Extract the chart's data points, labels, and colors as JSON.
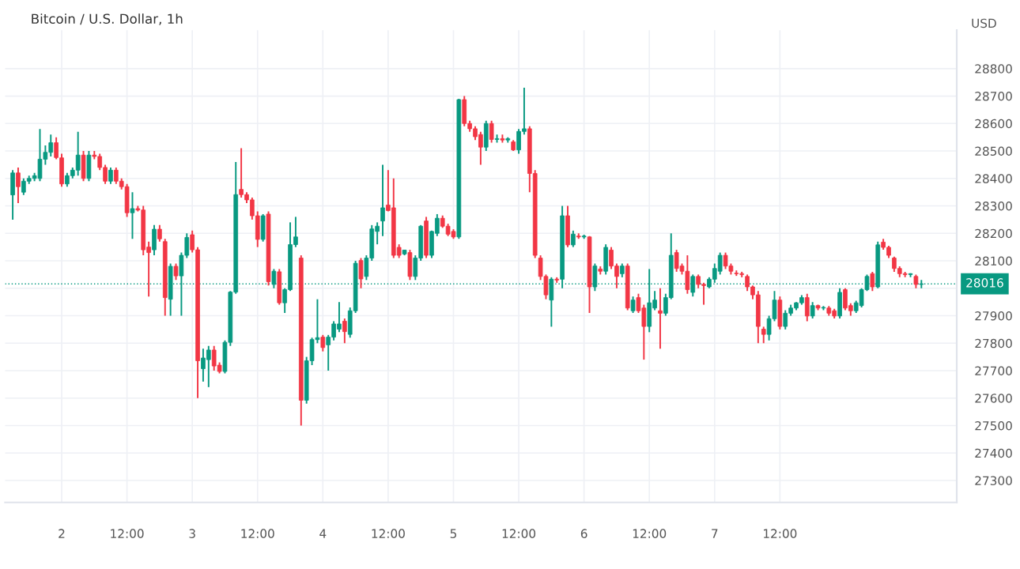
{
  "chart_data": {
    "type": "candlestick",
    "title": "Bitcoin / U.S. Dollar, 1h",
    "categories": [
      null,
      null,
      null,
      null,
      null,
      null,
      null,
      null,
      null,
      "2",
      null,
      null,
      null,
      null,
      null,
      null,
      null,
      null,
      null,
      null,
      null,
      "12:00",
      null,
      null,
      null,
      null,
      null,
      null,
      null,
      null,
      null,
      null,
      null,
      "3",
      null,
      null,
      null,
      null,
      null,
      null,
      null,
      null,
      null,
      null,
      null,
      "12:00",
      null,
      null,
      null,
      null,
      null,
      null,
      null,
      null,
      null,
      null,
      null,
      "4",
      null,
      null,
      null,
      null,
      null,
      null,
      null,
      null,
      null,
      null,
      null,
      "12:00",
      null,
      null,
      null,
      null,
      null,
      null,
      null,
      null,
      null,
      null,
      null,
      "5",
      null,
      null,
      null,
      null,
      null,
      null,
      null,
      null,
      null,
      null,
      null,
      "12:00",
      null,
      null,
      null,
      null,
      null,
      null,
      null,
      null,
      null,
      null,
      null,
      "6",
      null,
      null,
      null,
      null,
      null,
      null,
      null,
      null,
      null,
      null,
      null,
      "12:00",
      null,
      null,
      null,
      null,
      null,
      null,
      null,
      null,
      null,
      null,
      null,
      "7",
      null,
      null,
      null,
      null,
      null,
      null,
      null,
      null,
      null,
      null,
      null,
      "12:00",
      null,
      null,
      null,
      null,
      null,
      null,
      null,
      null,
      null,
      null,
      null,
      null,
      null,
      null,
      null,
      null,
      null,
      null,
      null,
      null,
      null,
      null,
      null,
      null,
      null,
      null
    ],
    "ohlc": [
      [
        28340,
        28430,
        28250,
        28420
      ],
      [
        28420,
        28440,
        28310,
        28370
      ],
      [
        28350,
        28400,
        28340,
        28390
      ],
      [
        28390,
        28410,
        28380,
        28400
      ],
      [
        28400,
        28420,
        28390,
        28410
      ],
      [
        28400,
        28580,
        28390,
        28470
      ],
      [
        28470,
        28520,
        28450,
        28495
      ],
      [
        28495,
        28560,
        28480,
        28530
      ],
      [
        28530,
        28550,
        28470,
        28476
      ],
      [
        28475,
        28490,
        28370,
        28380
      ],
      [
        28380,
        28420,
        28370,
        28410
      ],
      [
        28410,
        28440,
        28400,
        28430
      ],
      [
        28430,
        28570,
        28410,
        28485
      ],
      [
        28485,
        28500,
        28390,
        28400
      ],
      [
        28400,
        28500,
        28390,
        28485
      ],
      [
        28485,
        28500,
        28470,
        28480
      ],
      [
        28480,
        28490,
        28430,
        28440
      ],
      [
        28440,
        28450,
        28380,
        28390
      ],
      [
        28390,
        28440,
        28380,
        28430
      ],
      [
        28430,
        28440,
        28380,
        28390
      ],
      [
        28390,
        28400,
        28360,
        28370
      ],
      [
        28370,
        28380,
        28260,
        28275
      ],
      [
        28275,
        28350,
        28180,
        28290
      ],
      [
        28290,
        28300,
        28280,
        28285
      ],
      [
        28285,
        28300,
        28120,
        28140
      ],
      [
        28150,
        28170,
        27970,
        28130
      ],
      [
        28140,
        28230,
        28120,
        28215
      ],
      [
        28215,
        28230,
        28170,
        28180
      ],
      [
        28170,
        28180,
        27900,
        27966
      ],
      [
        27960,
        28090,
        27900,
        28080
      ],
      [
        28080,
        28090,
        28030,
        28045
      ],
      [
        28045,
        28130,
        27900,
        28120
      ],
      [
        28120,
        28200,
        28110,
        28185
      ],
      [
        28195,
        28210,
        28130,
        28140
      ],
      [
        28140,
        28150,
        27600,
        27736
      ],
      [
        27707,
        27780,
        27660,
        27746
      ],
      [
        27740,
        27790,
        27640,
        27775
      ],
      [
        27775,
        27790,
        27700,
        27717
      ],
      [
        27720,
        27730,
        27690,
        27697
      ],
      [
        27697,
        27810,
        27690,
        27803
      ],
      [
        27803,
        27990,
        27790,
        27986
      ],
      [
        27986,
        28460,
        27980,
        28341
      ],
      [
        28360,
        28510,
        28330,
        28341
      ],
      [
        28341,
        28350,
        28310,
        28322
      ],
      [
        28322,
        28330,
        28250,
        28264
      ],
      [
        28264,
        28280,
        28150,
        28178
      ],
      [
        28178,
        28270,
        28170,
        28264
      ],
      [
        28270,
        28280,
        28010,
        28024
      ],
      [
        28014,
        28070,
        28000,
        28062
      ],
      [
        28060,
        28070,
        27940,
        27947
      ],
      [
        27947,
        28000,
        27910,
        27995
      ],
      [
        27995,
        28240,
        27990,
        28159
      ],
      [
        28159,
        28260,
        28150,
        28187
      ],
      [
        28110,
        28120,
        27500,
        27592
      ],
      [
        27592,
        27750,
        27580,
        27736
      ],
      [
        27736,
        27820,
        27720,
        27813
      ],
      [
        27813,
        27960,
        27800,
        27820
      ],
      [
        27822,
        27830,
        27770,
        27784
      ],
      [
        27794,
        27830,
        27700,
        27822
      ],
      [
        27822,
        27880,
        27810,
        27870
      ],
      [
        27851,
        27950,
        27840,
        27870
      ],
      [
        27880,
        27890,
        27800,
        27842
      ],
      [
        27832,
        27930,
        27820,
        27918
      ],
      [
        27918,
        28100,
        27910,
        28091
      ],
      [
        28101,
        28110,
        28000,
        28034
      ],
      [
        28043,
        28120,
        28030,
        28110
      ],
      [
        28110,
        28230,
        28100,
        28216
      ],
      [
        28207,
        28240,
        28160,
        28226
      ],
      [
        28245,
        28450,
        28190,
        28293
      ],
      [
        28303,
        28430,
        28280,
        28283
      ],
      [
        28293,
        28400,
        28110,
        28120
      ],
      [
        28149,
        28160,
        28110,
        28120
      ],
      [
        28125,
        28140,
        28120,
        28139
      ],
      [
        28130,
        28140,
        28030,
        28043
      ],
      [
        28043,
        28120,
        28030,
        28110
      ],
      [
        28110,
        28230,
        28100,
        28226
      ],
      [
        28245,
        28260,
        28110,
        28120
      ],
      [
        28120,
        28210,
        28110,
        28207
      ],
      [
        28200,
        28270,
        28190,
        28255
      ],
      [
        28255,
        28265,
        28220,
        28226
      ],
      [
        28226,
        28235,
        28190,
        28197
      ],
      [
        28207,
        28215,
        28180,
        28187
      ],
      [
        28187,
        28690,
        28180,
        28687
      ],
      [
        28687,
        28700,
        28590,
        28600
      ],
      [
        28600,
        28610,
        28570,
        28581
      ],
      [
        28581,
        28590,
        28540,
        28552
      ],
      [
        28560,
        28570,
        28450,
        28514
      ],
      [
        28514,
        28610,
        28500,
        28600
      ],
      [
        28600,
        28610,
        28530,
        28542
      ],
      [
        28542,
        28560,
        28530,
        28545
      ],
      [
        28545,
        28560,
        28530,
        28540
      ],
      [
        28540,
        28550,
        28530,
        28545
      ],
      [
        28533,
        28540,
        28500,
        28504
      ],
      [
        28504,
        28580,
        28490,
        28571
      ],
      [
        28571,
        28730,
        28560,
        28581
      ],
      [
        28581,
        28590,
        28350,
        28418
      ],
      [
        28418,
        28430,
        28110,
        28120
      ],
      [
        28110,
        28120,
        28030,
        28043
      ],
      [
        28043,
        28050,
        27960,
        27976
      ],
      [
        27957,
        28040,
        27860,
        28033
      ],
      [
        28033,
        28040,
        28020,
        28030
      ],
      [
        28033,
        28300,
        28000,
        28264
      ],
      [
        28264,
        28300,
        28150,
        28158
      ],
      [
        28158,
        28210,
        28150,
        28197
      ],
      [
        28190,
        28200,
        28180,
        28187
      ],
      [
        28187,
        28195,
        28180,
        28190
      ],
      [
        28187,
        28190,
        27910,
        28005
      ],
      [
        28005,
        28090,
        27990,
        28081
      ],
      [
        28070,
        28080,
        28050,
        28062
      ],
      [
        28062,
        28160,
        28050,
        28149
      ],
      [
        28139,
        28150,
        28070,
        28081
      ],
      [
        28081,
        28090,
        28000,
        28043
      ],
      [
        28053,
        28090,
        28040,
        28081
      ],
      [
        28081,
        28090,
        27920,
        27928
      ],
      [
        27918,
        27970,
        27910,
        27957
      ],
      [
        27966,
        27980,
        27910,
        27918
      ],
      [
        27928,
        27940,
        27740,
        27861
      ],
      [
        27861,
        28070,
        27840,
        27947
      ],
      [
        27928,
        27990,
        27920,
        27957
      ],
      [
        27918,
        28000,
        27780,
        27909
      ],
      [
        27909,
        27980,
        27900,
        27966
      ],
      [
        27966,
        28200,
        27960,
        28120
      ],
      [
        28130,
        28140,
        28060,
        28072
      ],
      [
        28081,
        28090,
        28050,
        28062
      ],
      [
        28062,
        28120,
        27980,
        27995
      ],
      [
        27985,
        28050,
        27970,
        28043
      ],
      [
        28043,
        28050,
        28000,
        28014
      ],
      [
        28014,
        28020,
        27940,
        28010
      ],
      [
        28005,
        28040,
        28000,
        28033
      ],
      [
        28033,
        28090,
        28020,
        28072
      ],
      [
        28062,
        28130,
        28050,
        28120
      ],
      [
        28120,
        28130,
        28070,
        28081
      ],
      [
        28081,
        28090,
        28050,
        28062
      ],
      [
        28055,
        28065,
        28045,
        28053
      ],
      [
        28053,
        28060,
        28040,
        28050
      ],
      [
        28043,
        28050,
        27990,
        28005
      ],
      [
        28005,
        28010,
        27960,
        27976
      ],
      [
        27976,
        27990,
        27800,
        27861
      ],
      [
        27851,
        27860,
        27800,
        27832
      ],
      [
        27832,
        27900,
        27810,
        27889
      ],
      [
        27889,
        27990,
        27880,
        27957
      ],
      [
        27957,
        27970,
        27850,
        27861
      ],
      [
        27861,
        27920,
        27850,
        27909
      ],
      [
        27909,
        27940,
        27900,
        27928
      ],
      [
        27928,
        27950,
        27920,
        27947
      ],
      [
        27947,
        27975,
        27940,
        27966
      ],
      [
        27966,
        27980,
        27880,
        27899
      ],
      [
        27899,
        27950,
        27890,
        27937
      ],
      [
        27937,
        27940,
        27920,
        27928
      ],
      [
        27928,
        27935,
        27920,
        27930
      ],
      [
        27928,
        27935,
        27900,
        27909
      ],
      [
        27918,
        27925,
        27890,
        27899
      ],
      [
        27899,
        28000,
        27890,
        27985
      ],
      [
        27995,
        28000,
        27920,
        27928
      ],
      [
        27937,
        27945,
        27900,
        27918
      ],
      [
        27918,
        27955,
        27910,
        27947
      ],
      [
        27937,
        28000,
        27930,
        27995
      ],
      [
        27995,
        28050,
        27990,
        28043
      ],
      [
        28053,
        28060,
        27990,
        28005
      ],
      [
        28005,
        28170,
        28000,
        28158
      ],
      [
        28168,
        28180,
        28140,
        28149
      ],
      [
        28149,
        28155,
        28110,
        28120
      ],
      [
        28110,
        28115,
        28060,
        28072
      ],
      [
        28072,
        28080,
        28040,
        28053
      ],
      [
        28053,
        28060,
        28040,
        28050
      ],
      [
        28050,
        28055,
        28040,
        28053
      ],
      [
        28043,
        28050,
        28000,
        28014
      ],
      [
        28014,
        28030,
        28000,
        28016
      ]
    ],
    "ylim": [
      27220,
      28940
    ],
    "yticks": [
      27300,
      27400,
      27500,
      27600,
      27700,
      27800,
      27900,
      {
        "value": 28000,
        "label": null
      },
      28100,
      28200,
      28300,
      28400,
      28500,
      28600,
      28700,
      28800
    ],
    "ylabel": "USD",
    "ref_lines": [
      {
        "axis": "y",
        "value": 28016,
        "label": "28016",
        "color": "#089981"
      }
    ],
    "grid": true
  }
}
